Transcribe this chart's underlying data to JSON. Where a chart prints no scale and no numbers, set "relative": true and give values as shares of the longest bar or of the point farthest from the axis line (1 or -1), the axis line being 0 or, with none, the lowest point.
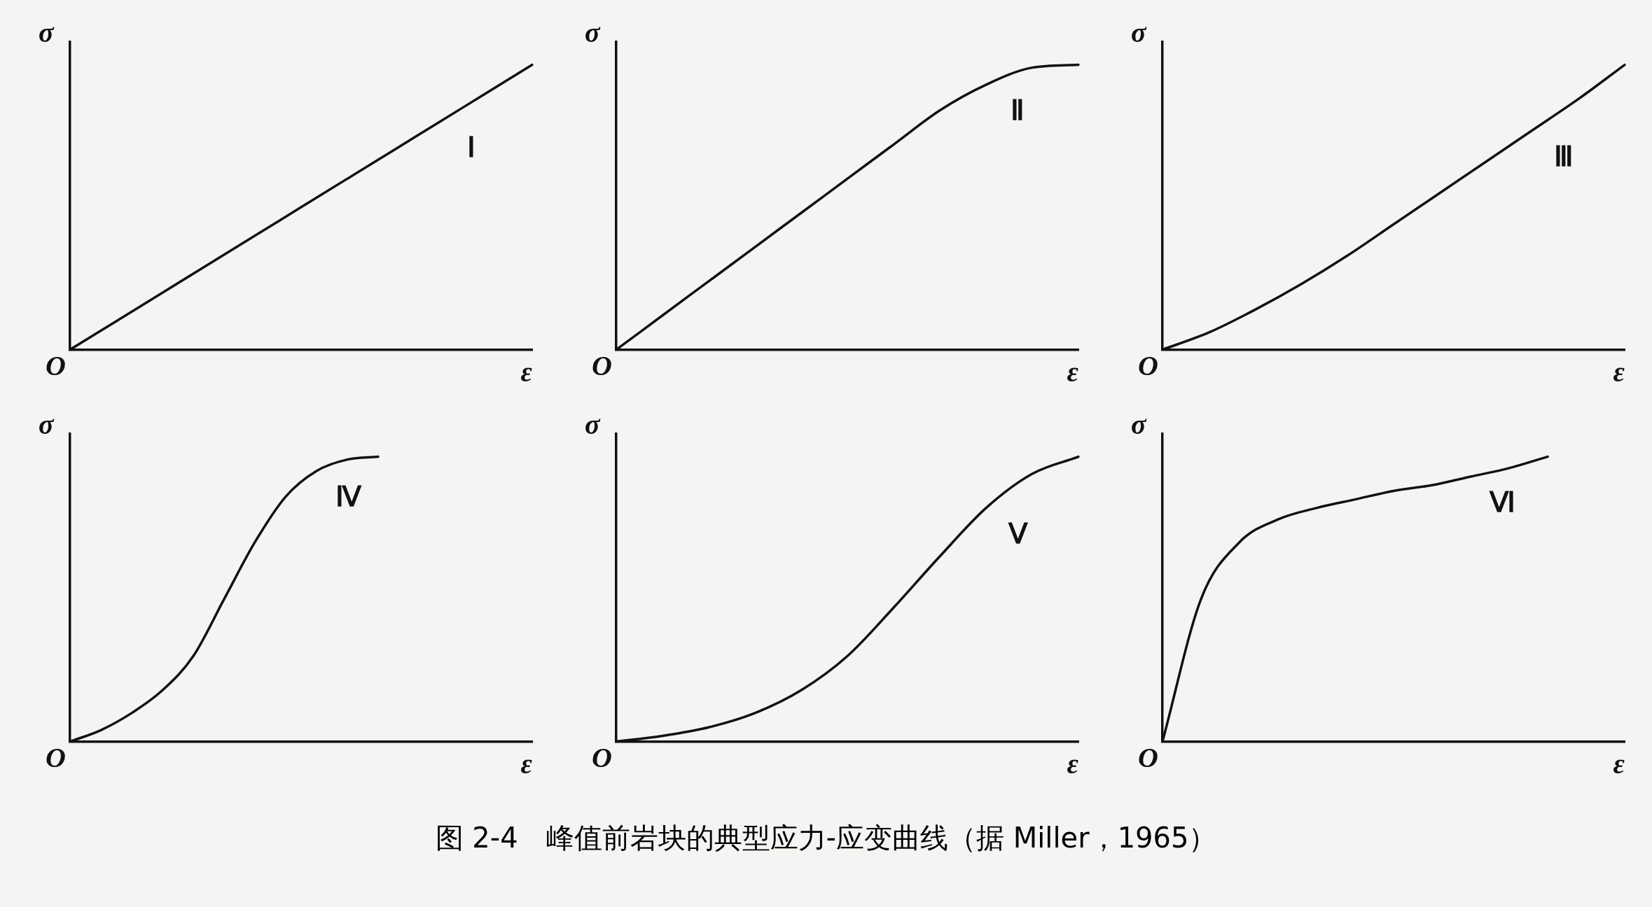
{
  "chart_data": [
    {
      "type": "line",
      "relative": true,
      "xlabel": "ε",
      "ylabel": "σ",
      "grid": false,
      "legend": false,
      "marker": "none",
      "categories": [
        null,
        null,
        null,
        null,
        null,
        null,
        null,
        null,
        null,
        null,
        null
      ],
      "series": [
        {
          "name": "Ⅰ",
          "color": "#111111",
          "values": [
            0,
            0.1,
            0.2,
            0.3,
            0.4,
            0.5,
            0.6,
            0.7,
            0.8,
            0.9,
            1
          ]
        }
      ],
      "annotations": [
        "O",
        "图 2-4　峰值前岩块的典型应力-应变曲线（据 Miller，1965）"
      ]
    },
    {
      "type": "line",
      "relative": true,
      "xlabel": "ε",
      "ylabel": "σ",
      "grid": false,
      "legend": false,
      "marker": "none",
      "categories": [
        null,
        null,
        null,
        null,
        null,
        null,
        null,
        null,
        null,
        null,
        null
      ],
      "series": [
        {
          "name": "Ⅱ",
          "color": "#111111",
          "values": [
            0,
            0.12,
            0.24,
            0.36,
            0.48,
            0.6,
            0.72,
            0.84,
            0.93,
            0.99,
            1
          ]
        }
      ],
      "annotations": [
        "O"
      ]
    },
    {
      "type": "line",
      "relative": true,
      "xlabel": "ε",
      "ylabel": "σ",
      "grid": false,
      "legend": false,
      "marker": "none",
      "categories": [
        null,
        null,
        null,
        null,
        null,
        null,
        null,
        null,
        null,
        null,
        null
      ],
      "series": [
        {
          "name": "Ⅲ",
          "color": "#111111",
          "values": [
            0,
            0.06,
            0.14,
            0.23,
            0.33,
            0.44,
            0.55,
            0.66,
            0.77,
            0.88,
            1
          ]
        }
      ],
      "annotations": [
        "O"
      ]
    },
    {
      "type": "line",
      "relative": true,
      "xlabel": "ε",
      "ylabel": "σ",
      "grid": false,
      "legend": false,
      "marker": "none",
      "categories": [
        null,
        null,
        null,
        null,
        null,
        null,
        null,
        null,
        null,
        null,
        null,
        null,
        null,
        null,
        null,
        null
      ],
      "series": [
        {
          "name": "Ⅳ",
          "color": "#111111",
          "values": [
            0,
            0.04,
            0.1,
            0.18,
            0.3,
            0.5,
            0.7,
            0.86,
            0.95,
            0.99,
            1,
            null,
            null,
            null,
            null,
            null
          ]
        }
      ],
      "annotations": [
        "O"
      ]
    },
    {
      "type": "line",
      "relative": true,
      "xlabel": "ε",
      "ylabel": "σ",
      "grid": false,
      "legend": false,
      "marker": "none",
      "categories": [
        null,
        null,
        null,
        null,
        null,
        null,
        null,
        null,
        null,
        null,
        null
      ],
      "series": [
        {
          "name": "Ⅴ",
          "color": "#111111",
          "values": [
            0,
            0.02,
            0.05,
            0.1,
            0.18,
            0.3,
            0.47,
            0.65,
            0.82,
            0.94,
            1
          ]
        }
      ],
      "annotations": [
        "O"
      ]
    },
    {
      "type": "line",
      "relative": true,
      "xlabel": "ε",
      "ylabel": "σ",
      "grid": false,
      "legend": false,
      "marker": "none",
      "categories": [
        null,
        null,
        null,
        null,
        null,
        null,
        null,
        null,
        null,
        null,
        null,
        null,
        null
      ],
      "series": [
        {
          "name": "Ⅵ",
          "color": "#111111",
          "values": [
            0,
            0.5,
            0.7,
            0.78,
            0.82,
            0.85,
            0.88,
            0.9,
            0.93,
            0.96,
            1,
            null,
            null
          ]
        }
      ],
      "annotations": [
        "O"
      ]
    }
  ]
}
